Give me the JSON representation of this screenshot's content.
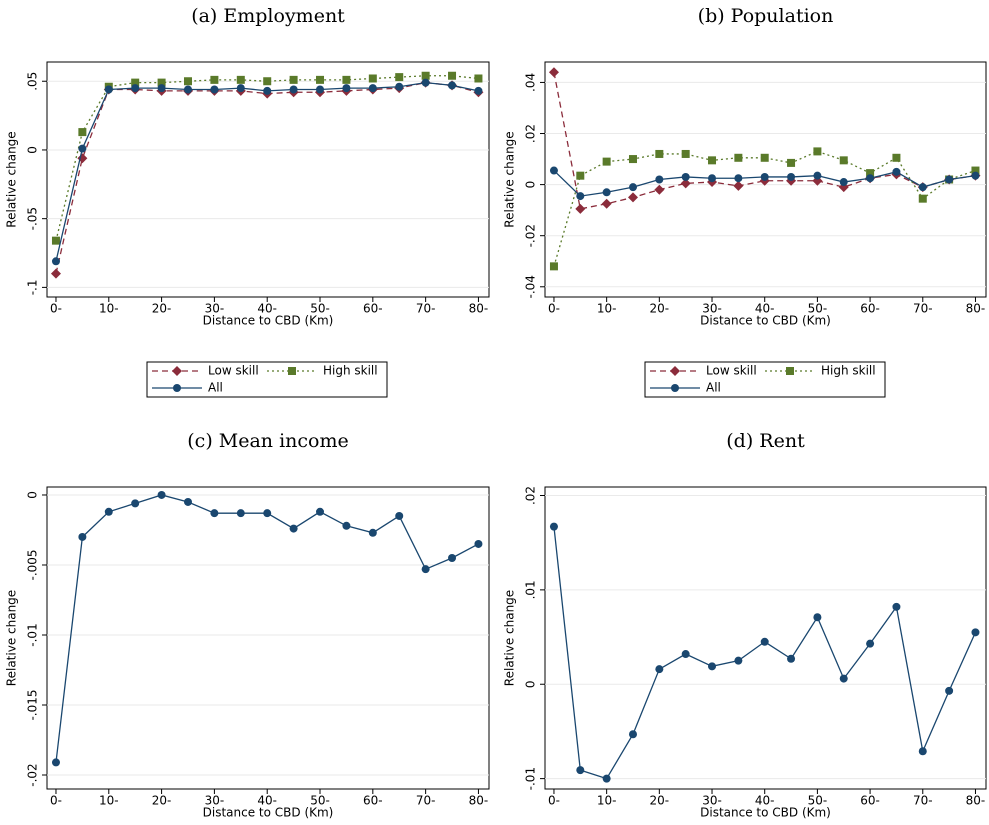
{
  "chart_data": [
    {
      "type": "line",
      "title": "(a) Employment",
      "xlabel": "Distance to CBD (Km)",
      "ylabel": "Relative change",
      "x": [
        0,
        5,
        10,
        15,
        20,
        25,
        30,
        35,
        40,
        45,
        50,
        55,
        60,
        65,
        70,
        75,
        80
      ],
      "xlim": [
        -1.7,
        82
      ],
      "xticks": [
        {
          "value": 0,
          "label": "0-"
        },
        {
          "value": 10,
          "label": "10-"
        },
        {
          "value": 20,
          "label": "20-"
        },
        {
          "value": 30,
          "label": "30-"
        },
        {
          "value": 40,
          "label": "40-"
        },
        {
          "value": 50,
          "label": "50-"
        },
        {
          "value": 60,
          "label": "60-"
        },
        {
          "value": 70,
          "label": "70-"
        },
        {
          "value": 80,
          "label": "80-"
        }
      ],
      "ylim": [
        -0.107,
        0.064
      ],
      "yticks": [
        {
          "value": -0.1,
          "label": "-.1"
        },
        {
          "value": -0.05,
          "label": "-.05"
        },
        0,
        {
          "value": 0.05,
          "label": ".05"
        }
      ],
      "grid": true,
      "legend": true,
      "series": [
        {
          "name": "Low skill",
          "color": "#8b2c3b",
          "marker": "diamond",
          "linestyle": "dashed",
          "values": [
            -0.09,
            -0.006,
            0.044,
            0.044,
            0.043,
            0.043,
            0.043,
            0.043,
            0.041,
            0.042,
            0.042,
            0.043,
            0.044,
            0.045,
            0.049,
            0.047,
            0.042
          ]
        },
        {
          "name": "High skill",
          "color": "#5a7a2a",
          "marker": "square",
          "linestyle": "dotted",
          "values": [
            -0.066,
            0.013,
            0.046,
            0.049,
            0.049,
            0.05,
            0.051,
            0.051,
            0.05,
            0.051,
            0.051,
            0.051,
            0.052,
            0.053,
            0.054,
            0.054,
            0.052
          ]
        },
        {
          "name": "All",
          "color": "#1a476f",
          "marker": "circle",
          "linestyle": "solid",
          "values": [
            -0.081,
            0.001,
            0.044,
            0.045,
            0.045,
            0.044,
            0.044,
            0.045,
            0.043,
            0.044,
            0.044,
            0.045,
            0.045,
            0.046,
            0.049,
            0.047,
            0.043
          ]
        }
      ]
    },
    {
      "type": "line",
      "title": "(b) Population",
      "xlabel": "Distance to CBD (Km)",
      "ylabel": "Relative change",
      "x": [
        0,
        5,
        10,
        15,
        20,
        25,
        30,
        35,
        40,
        45,
        50,
        55,
        60,
        65,
        70,
        75,
        80
      ],
      "xlim": [
        -1.7,
        82
      ],
      "xticks": [
        {
          "value": 0,
          "label": "0-"
        },
        {
          "value": 10,
          "label": "10-"
        },
        {
          "value": 20,
          "label": "20-"
        },
        {
          "value": 30,
          "label": "30-"
        },
        {
          "value": 40,
          "label": "40-"
        },
        {
          "value": 50,
          "label": "50-"
        },
        {
          "value": 60,
          "label": "60-"
        },
        {
          "value": 70,
          "label": "70-"
        },
        {
          "value": 80,
          "label": "80-"
        }
      ],
      "ylim": [
        -0.044,
        0.048
      ],
      "yticks": [
        {
          "value": -0.04,
          "label": "-.04"
        },
        {
          "value": -0.02,
          "label": "-.02"
        },
        0,
        {
          "value": 0.02,
          "label": ".02"
        },
        {
          "value": 0.04,
          "label": ".04"
        }
      ],
      "grid": true,
      "legend": true,
      "series": [
        {
          "name": "Low skill",
          "color": "#8b2c3b",
          "marker": "diamond",
          "linestyle": "dashed",
          "values": [
            0.044,
            -0.0095,
            -0.0075,
            -0.005,
            -0.002,
            0.0005,
            0.001,
            -0.0005,
            0.0015,
            0.0015,
            0.0015,
            -0.001,
            0.0025,
            0.004,
            -0.001,
            0.002,
            0.0035
          ]
        },
        {
          "name": "High skill",
          "color": "#5a7a2a",
          "marker": "square",
          "linestyle": "dotted",
          "values": [
            -0.032,
            0.0035,
            0.009,
            0.01,
            0.012,
            0.012,
            0.0095,
            0.0105,
            0.0105,
            0.0085,
            0.013,
            0.0095,
            0.0045,
            0.0105,
            -0.0055,
            0.002,
            0.0055
          ]
        },
        {
          "name": "All",
          "color": "#1a476f",
          "marker": "circle",
          "linestyle": "solid",
          "values": [
            0.0055,
            -0.0045,
            -0.003,
            -0.001,
            0.002,
            0.003,
            0.0025,
            0.0025,
            0.003,
            0.003,
            0.0035,
            0.001,
            0.0025,
            0.005,
            -0.001,
            0.002,
            0.0035
          ]
        }
      ]
    },
    {
      "type": "line",
      "title": "(c) Mean income",
      "xlabel": "Distance to CBD (Km)",
      "ylabel": "Relative change",
      "x": [
        0,
        5,
        10,
        15,
        20,
        25,
        30,
        35,
        40,
        45,
        50,
        55,
        60,
        65,
        70,
        75,
        80
      ],
      "xlim": [
        -1.7,
        82
      ],
      "xticks": [
        {
          "value": 0,
          "label": "0-"
        },
        {
          "value": 10,
          "label": "10-"
        },
        {
          "value": 20,
          "label": "20-"
        },
        {
          "value": 30,
          "label": "30-"
        },
        {
          "value": 40,
          "label": "40-"
        },
        {
          "value": 50,
          "label": "50-"
        },
        {
          "value": 60,
          "label": "60-"
        },
        {
          "value": 70,
          "label": "70-"
        },
        {
          "value": 80,
          "label": "80-"
        }
      ],
      "ylim": [
        -0.021,
        0.00057
      ],
      "yticks": [
        {
          "value": -0.02,
          "label": "-.02"
        },
        {
          "value": -0.015,
          "label": "-.015"
        },
        {
          "value": -0.01,
          "label": "-.01"
        },
        {
          "value": -0.005,
          "label": "-.005"
        },
        0
      ],
      "grid": true,
      "legend": false,
      "series": [
        {
          "color": "#1a476f",
          "marker": "circle",
          "linestyle": "solid",
          "values": [
            -0.0191,
            -0.003,
            -0.0012,
            -0.0006,
            0,
            -0.0005,
            -0.0013,
            -0.0013,
            -0.0013,
            -0.0024,
            -0.0012,
            -0.0022,
            -0.0027,
            -0.0015,
            -0.0053,
            -0.0045,
            -0.0035
          ]
        }
      ]
    },
    {
      "type": "line",
      "title": "(d) Rent",
      "xlabel": "Distance to CBD (Km)",
      "ylabel": "Relative change",
      "x": [
        0,
        5,
        10,
        15,
        20,
        25,
        30,
        35,
        40,
        45,
        50,
        55,
        60,
        65,
        70,
        75,
        80
      ],
      "xlim": [
        -1.7,
        82
      ],
      "xticks": [
        {
          "value": 0,
          "label": "0-"
        },
        {
          "value": 10,
          "label": "10-"
        },
        {
          "value": 20,
          "label": "20-"
        },
        {
          "value": 30,
          "label": "30-"
        },
        {
          "value": 40,
          "label": "40-"
        },
        {
          "value": 50,
          "label": "50-"
        },
        {
          "value": 60,
          "label": "60-"
        },
        {
          "value": 70,
          "label": "70-"
        },
        {
          "value": 80,
          "label": "80-"
        }
      ],
      "ylim": [
        -0.0111,
        0.0209
      ],
      "yticks": [
        {
          "value": -0.01,
          "label": "-.01"
        },
        0,
        {
          "value": 0.01,
          "label": ".01"
        },
        {
          "value": 0.02,
          "label": ".02"
        }
      ],
      "grid": true,
      "legend": false,
      "series": [
        {
          "color": "#1a476f",
          "marker": "circle",
          "linestyle": "solid",
          "values": [
            0.0167,
            -0.0091,
            -0.01,
            -0.0053,
            0.0016,
            0.0032,
            0.0019,
            0.0025,
            0.0045,
            0.0027,
            0.0071,
            0.0006,
            0.0043,
            0.0082,
            -0.0071,
            -0.0007,
            0.0055
          ]
        }
      ]
    }
  ]
}
